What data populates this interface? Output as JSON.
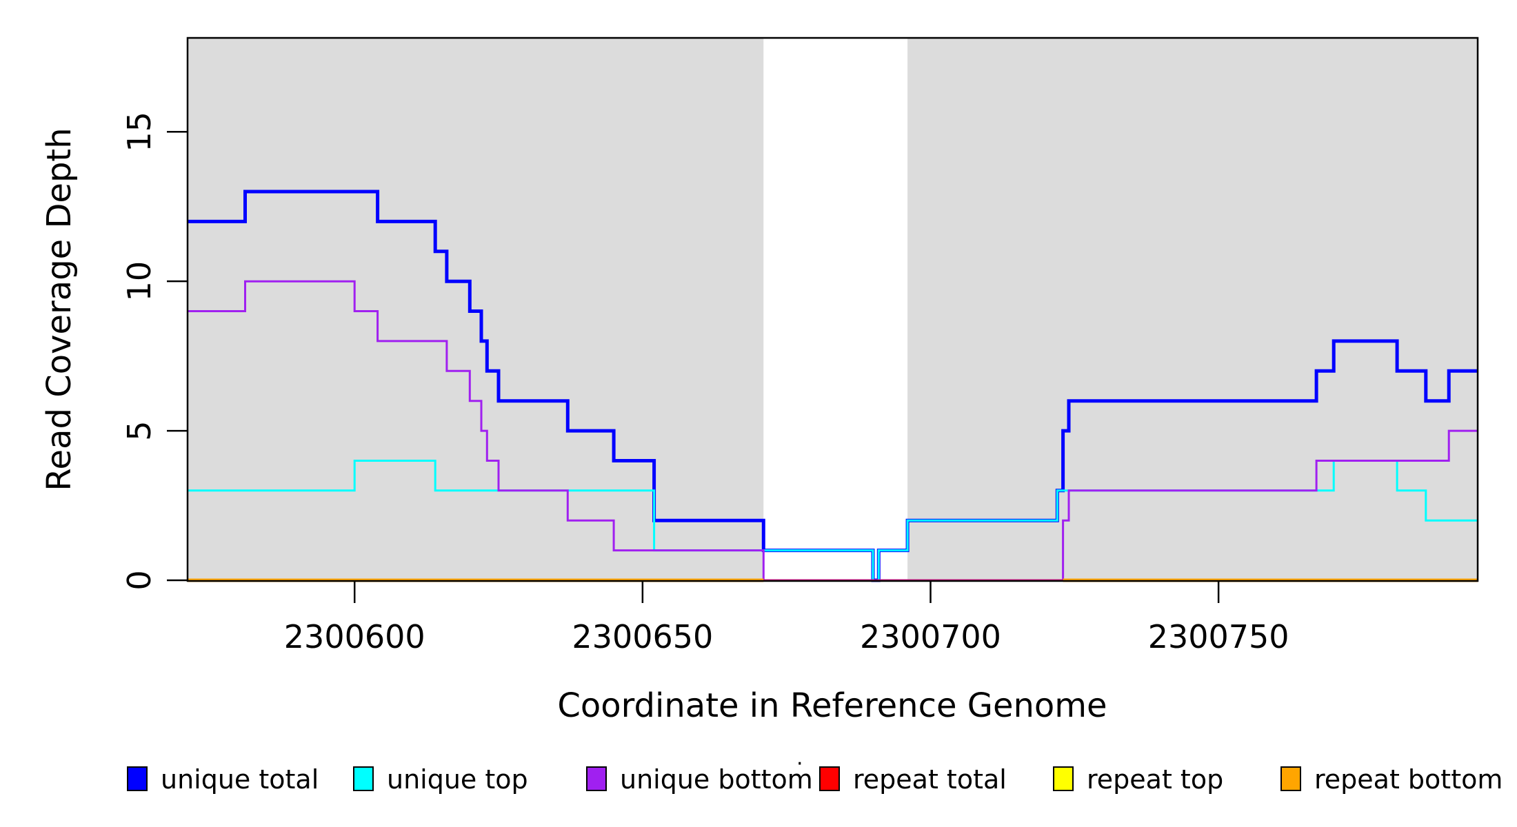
{
  "chart_data": {
    "type": "line",
    "step": true,
    "title": "",
    "xlabel": "Coordinate in Reference Genome",
    "ylabel": "Read Coverage Depth",
    "xlim": [
      2300571,
      2300795
    ],
    "ylim": [
      0,
      18.14
    ],
    "grid": false,
    "x_ticks": [
      {
        "value": 2300600,
        "label": "2300600"
      },
      {
        "value": 2300650,
        "label": "2300650"
      },
      {
        "value": 2300700,
        "label": "2300700"
      },
      {
        "value": 2300750,
        "label": "2300750"
      }
    ],
    "y_ticks": [
      {
        "value": 0,
        "label": "0"
      },
      {
        "value": 5,
        "label": "5"
      },
      {
        "value": 10,
        "label": "10"
      },
      {
        "value": 15,
        "label": "15"
      }
    ],
    "shaded_regions": [
      {
        "from": 2300571,
        "to": 2300671
      },
      {
        "from": 2300696,
        "to": 2300795
      }
    ],
    "shade_color": "#DCDCDC",
    "axis_color": "#000000",
    "series": [
      {
        "name": "unique total",
        "color": "#0000FF",
        "width": 5,
        "points": [
          [
            2300571,
            12
          ],
          [
            2300581,
            13
          ],
          [
            2300604,
            12
          ],
          [
            2300614,
            11
          ],
          [
            2300616,
            10
          ],
          [
            2300620,
            9
          ],
          [
            2300622,
            8
          ],
          [
            2300623,
            7
          ],
          [
            2300625,
            6
          ],
          [
            2300637,
            5
          ],
          [
            2300645,
            4
          ],
          [
            2300652,
            2
          ],
          [
            2300671,
            1
          ],
          [
            2300690,
            0
          ],
          [
            2300691,
            1
          ],
          [
            2300696,
            2
          ],
          [
            2300722,
            3
          ],
          [
            2300723,
            5
          ],
          [
            2300724,
            6
          ],
          [
            2300767,
            7
          ],
          [
            2300770,
            8
          ],
          [
            2300781,
            7
          ],
          [
            2300786,
            6
          ],
          [
            2300790,
            7
          ]
        ]
      },
      {
        "name": "unique top",
        "color": "#00FFFF",
        "width": 3,
        "points": [
          [
            2300571,
            3
          ],
          [
            2300600,
            4
          ],
          [
            2300614,
            3
          ],
          [
            2300652,
            1
          ],
          [
            2300690,
            0
          ],
          [
            2300691,
            1
          ],
          [
            2300696,
            2
          ],
          [
            2300722,
            3
          ],
          [
            2300770,
            4
          ],
          [
            2300781,
            3
          ],
          [
            2300786,
            2
          ]
        ]
      },
      {
        "name": "unique bottom",
        "color": "#A020F0",
        "width": 3,
        "points": [
          [
            2300571,
            9
          ],
          [
            2300581,
            10
          ],
          [
            2300600,
            9
          ],
          [
            2300604,
            8
          ],
          [
            2300616,
            7
          ],
          [
            2300620,
            6
          ],
          [
            2300622,
            5
          ],
          [
            2300623,
            4
          ],
          [
            2300625,
            3
          ],
          [
            2300637,
            2
          ],
          [
            2300645,
            1
          ],
          [
            2300671,
            0
          ],
          [
            2300723,
            2
          ],
          [
            2300724,
            3
          ],
          [
            2300767,
            4
          ],
          [
            2300790,
            5
          ]
        ]
      },
      {
        "name": "repeat total",
        "color": "#FF0000",
        "width": 3,
        "points": [
          [
            2300571,
            0
          ]
        ]
      },
      {
        "name": "repeat top",
        "color": "#FFFF00",
        "width": 3,
        "points": [
          [
            2300571,
            0
          ]
        ]
      },
      {
        "name": "repeat bottom",
        "color": "#FFA500",
        "width": 5,
        "value": 0,
        "segments": [
          [
            2300571,
            2300671
          ],
          [
            2300723,
            2300795
          ]
        ]
      }
    ],
    "overlap_tint": {
      "from": 2300671,
      "to": 2300723,
      "value": 0,
      "color": "#A020F0",
      "opacity": 0.55
    },
    "legend_position": "bottom",
    "legend": [
      {
        "label": "unique total",
        "color": "#0000FF"
      },
      {
        "label": "unique top",
        "color": "#00FFFF"
      },
      {
        "label": "unique bottom",
        "color": "#A020F0"
      },
      {
        "label": "repeat total",
        "color": "#FF0000"
      },
      {
        "label": "repeat top",
        "color": "#FFFF00"
      },
      {
        "label": "repeat bottom",
        "color": "#FFA500"
      }
    ],
    "stray_dot": "·"
  }
}
